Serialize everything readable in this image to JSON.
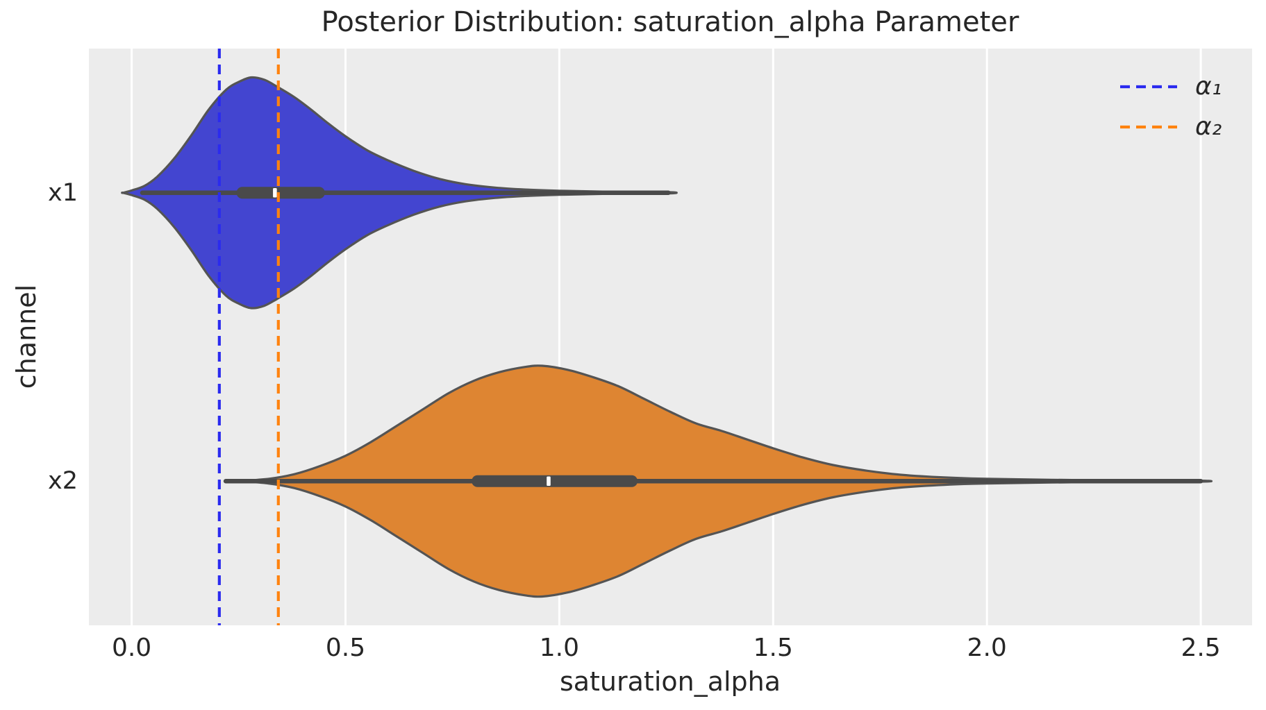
{
  "figure": {
    "title": "Posterior Distribution: saturation_alpha Parameter",
    "xlabel": "saturation_alpha",
    "ylabel": "channel"
  },
  "legend": {
    "entries": [
      {
        "label": "α₁",
        "color": "#2b2bef",
        "linestyle": "dashed"
      },
      {
        "label": "α₂",
        "color": "#ff830f",
        "linestyle": "dashed"
      }
    ]
  },
  "colors": {
    "figure_background": "#ffffff",
    "axes_background": "#ececec",
    "gridline": "#ffffff",
    "violin_outline": "#545454",
    "inner_box": "#4a4a4a",
    "median_tick": "#ffffff",
    "text": "#262626",
    "alpha1_line": "#2b2bef",
    "alpha2_line": "#ff830f",
    "x1_fill": "#4345d0",
    "x2_fill": "#de8532"
  },
  "chart_data": {
    "type": "violin",
    "orientation": "horizontal",
    "title": "Posterior Distribution: saturation_alpha Parameter",
    "xlabel": "saturation_alpha",
    "ylabel": "channel",
    "grid": "vertical white gridlines on gray background, no spines",
    "legend_position": "upper right, no frame",
    "xlim": [
      -0.1,
      2.62
    ],
    "x_ticks": [
      0.0,
      0.5,
      1.0,
      1.5,
      2.0,
      2.5
    ],
    "x_tick_labels": [
      "0.0",
      "0.5",
      "1.0",
      "1.5",
      "2.0",
      "2.5"
    ],
    "categories": [
      "x1",
      "x2"
    ],
    "violin_width": 0.8,
    "reference_lines": [
      {
        "label": "α₁",
        "value": 0.205,
        "color": "#2b2bef",
        "style": "dashed"
      },
      {
        "label": "α₂",
        "value": 0.343,
        "color": "#ff830f",
        "style": "dashed"
      }
    ],
    "series": [
      {
        "name": "x1",
        "fill": "#4345d0",
        "stats": {
          "whisker_low": 0.025,
          "q1": 0.245,
          "median": 0.335,
          "q3": 0.452,
          "whisker_high": 1.255
        },
        "density": [
          [
            -0.02,
            0.0
          ],
          [
            0.0,
            0.02
          ],
          [
            0.03,
            0.06
          ],
          [
            0.06,
            0.14
          ],
          [
            0.1,
            0.3
          ],
          [
            0.14,
            0.5
          ],
          [
            0.18,
            0.72
          ],
          [
            0.22,
            0.89
          ],
          [
            0.25,
            0.96
          ],
          [
            0.28,
            1.0
          ],
          [
            0.31,
            0.98
          ],
          [
            0.34,
            0.92
          ],
          [
            0.38,
            0.83
          ],
          [
            0.42,
            0.72
          ],
          [
            0.46,
            0.6
          ],
          [
            0.5,
            0.49
          ],
          [
            0.55,
            0.37
          ],
          [
            0.6,
            0.28
          ],
          [
            0.66,
            0.19
          ],
          [
            0.72,
            0.12
          ],
          [
            0.78,
            0.075
          ],
          [
            0.85,
            0.045
          ],
          [
            0.92,
            0.028
          ],
          [
            1.0,
            0.018
          ],
          [
            1.1,
            0.01
          ],
          [
            1.255,
            0.005
          ]
        ]
      },
      {
        "name": "x2",
        "fill": "#de8532",
        "stats": {
          "whisker_low": 0.22,
          "q1": 0.795,
          "median": 0.975,
          "q3": 1.183,
          "whisker_high": 2.5
        },
        "density": [
          [
            0.25,
            0.0
          ],
          [
            0.32,
            0.02
          ],
          [
            0.38,
            0.06
          ],
          [
            0.44,
            0.13
          ],
          [
            0.5,
            0.22
          ],
          [
            0.56,
            0.34
          ],
          [
            0.62,
            0.48
          ],
          [
            0.68,
            0.62
          ],
          [
            0.74,
            0.76
          ],
          [
            0.8,
            0.87
          ],
          [
            0.86,
            0.945
          ],
          [
            0.92,
            0.99
          ],
          [
            0.96,
            1.0
          ],
          [
            1.02,
            0.965
          ],
          [
            1.08,
            0.9
          ],
          [
            1.14,
            0.82
          ],
          [
            1.2,
            0.71
          ],
          [
            1.26,
            0.6
          ],
          [
            1.32,
            0.5
          ],
          [
            1.38,
            0.435
          ],
          [
            1.44,
            0.36
          ],
          [
            1.5,
            0.285
          ],
          [
            1.57,
            0.205
          ],
          [
            1.64,
            0.14
          ],
          [
            1.72,
            0.09
          ],
          [
            1.8,
            0.055
          ],
          [
            1.9,
            0.032
          ],
          [
            2.0,
            0.02
          ],
          [
            2.15,
            0.012
          ],
          [
            2.3,
            0.007
          ],
          [
            2.5,
            0.004
          ]
        ]
      }
    ]
  }
}
